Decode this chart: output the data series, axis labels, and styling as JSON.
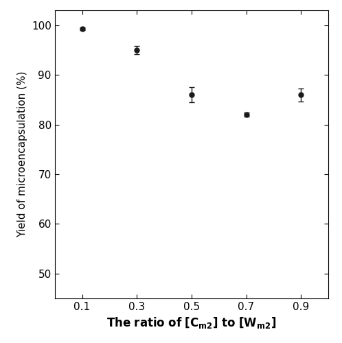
{
  "x": [
    0.1,
    0.3,
    0.5,
    0.7,
    0.9
  ],
  "y": [
    99.3,
    95.0,
    86.0,
    82.0,
    86.0
  ],
  "yerr": [
    0.3,
    0.8,
    1.5,
    0.4,
    1.3
  ],
  "xlim": [
    0.0,
    1.0
  ],
  "ylim": [
    45,
    103
  ],
  "yticks": [
    50,
    60,
    70,
    80,
    90,
    100
  ],
  "xticks": [
    0.1,
    0.3,
    0.5,
    0.7,
    0.9
  ],
  "xtick_labels": [
    "0.1",
    "0.3",
    "0.5",
    "0.7",
    "0.9"
  ],
  "ylabel": "Yield of microencapsulation (%)",
  "line_color": "#1a1a1a",
  "marker": "o",
  "marker_size": 5,
  "marker_facecolor": "#1a1a1a",
  "capsize": 3,
  "linewidth": 1.5,
  "tick_fontsize": 11,
  "ylabel_fontsize": 11,
  "xlabel_fontsize": 12
}
